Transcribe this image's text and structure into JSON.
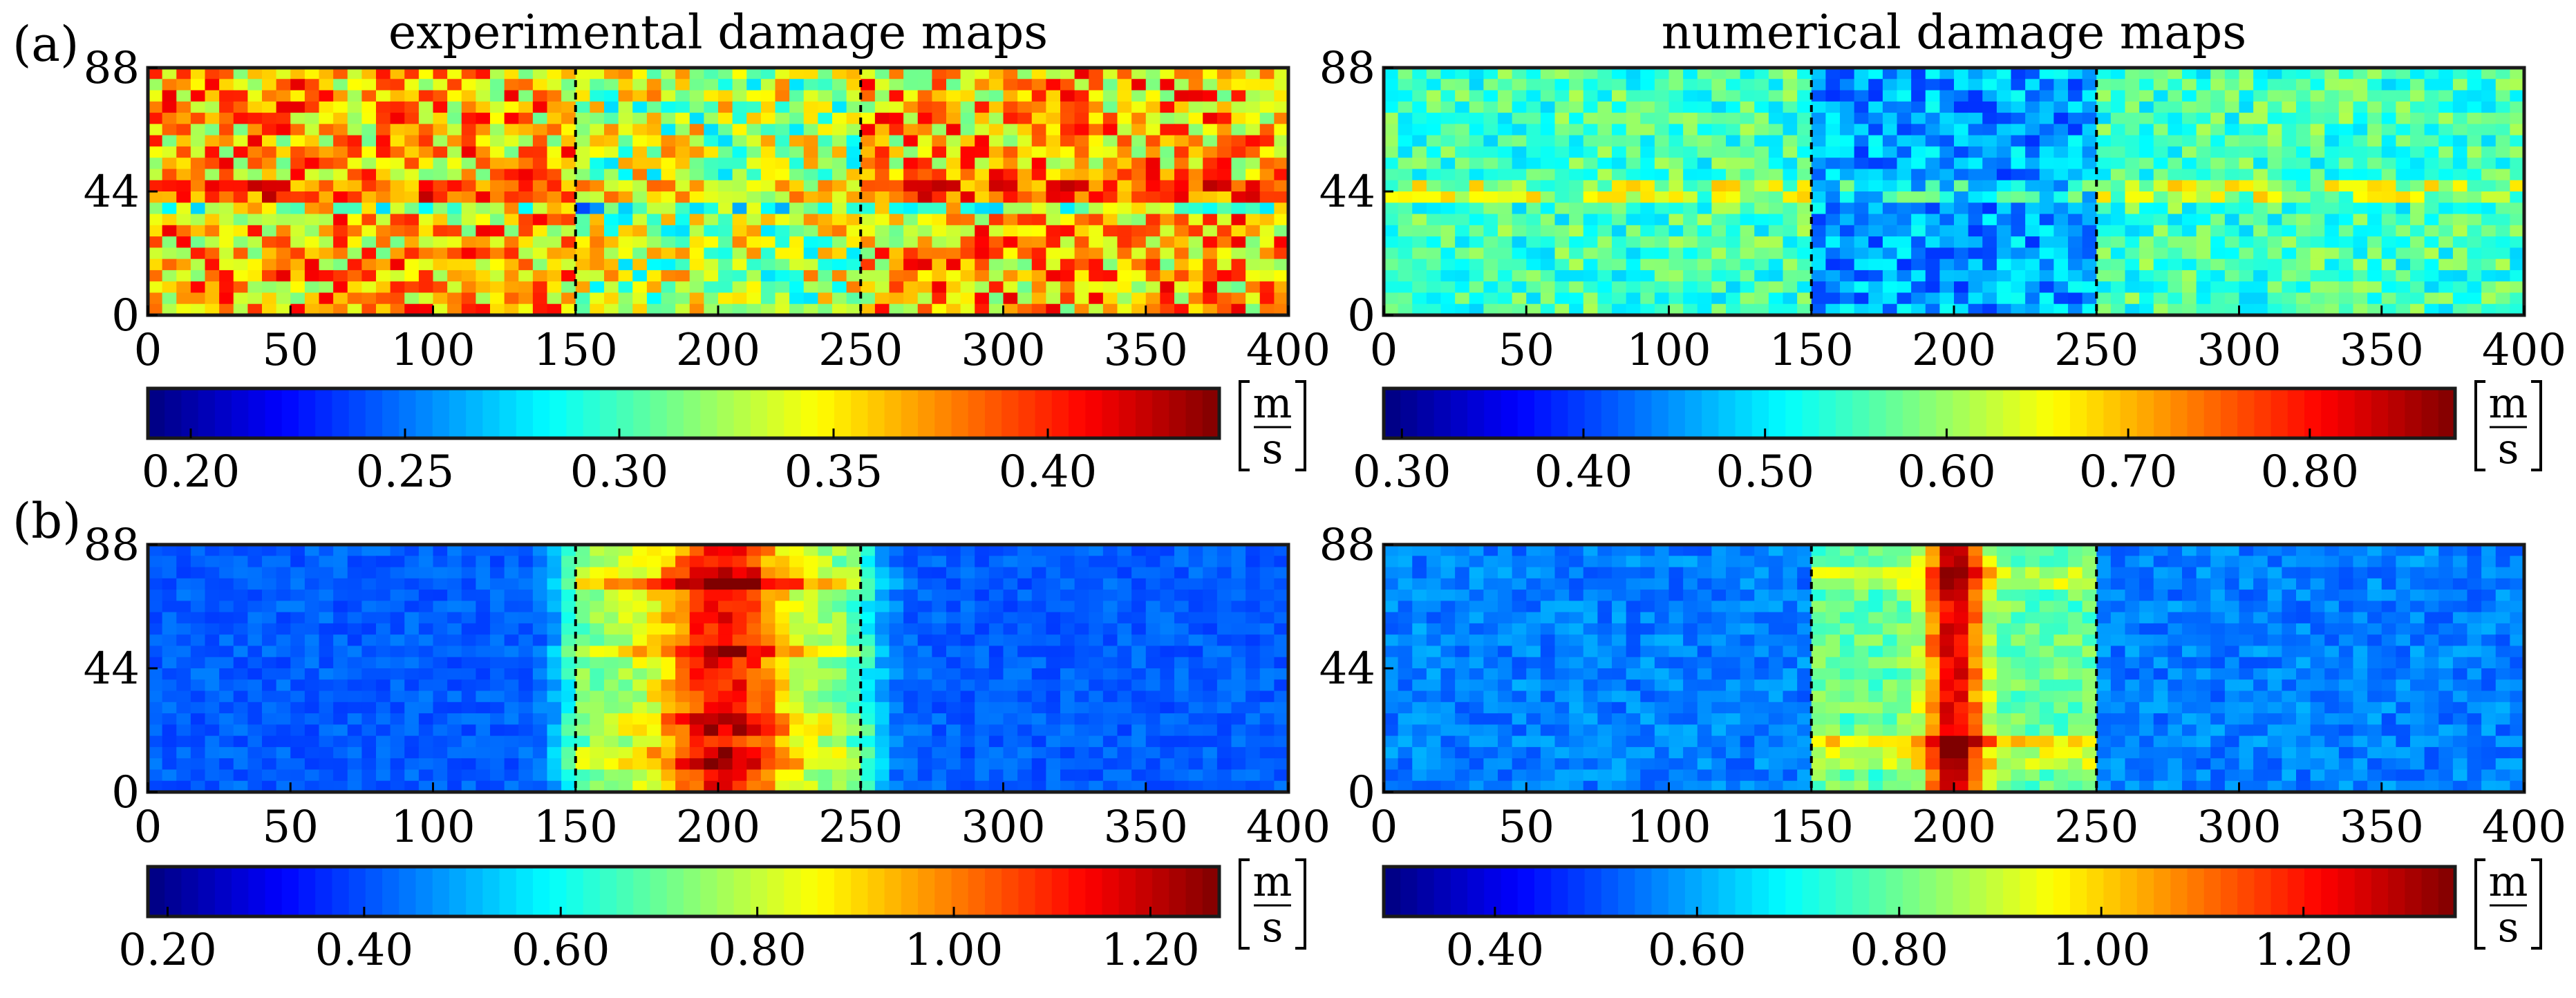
{
  "figure": {
    "row_labels": {
      "a": "(a)",
      "b": "(b)"
    },
    "unit": {
      "numerator": "m",
      "denominator": "s"
    },
    "colors": {
      "frame": "#1a1a1a",
      "divider": "#000000",
      "jet": [
        "#00007f",
        "#0000ff",
        "#007fff",
        "#00ffff",
        "#7fff7f",
        "#ffff00",
        "#ff7f00",
        "#ff0000",
        "#7f0000"
      ]
    }
  },
  "chart_data": [
    {
      "id": "a-exp",
      "row": "a",
      "type": "heatmap",
      "title": "experimental damage maps",
      "x_ticks": [
        "0",
        "50",
        "100",
        "150",
        "200",
        "250",
        "300",
        "350",
        "400"
      ],
      "y_ticks": [
        "0",
        "44",
        "88"
      ],
      "xlim": [
        0,
        400
      ],
      "ylim": [
        0,
        88
      ],
      "damage_zone": [
        150,
        250
      ],
      "pattern": "noise_band",
      "colorbar": {
        "ticks": [
          "0.20",
          "0.25",
          "0.30",
          "0.35",
          "0.40"
        ],
        "tick_values": [
          0.2,
          0.25,
          0.3,
          0.35,
          0.4
        ],
        "range": [
          0.19,
          0.44
        ],
        "unit_numerator": "m",
        "unit_denominator": "s"
      }
    },
    {
      "id": "a-num",
      "row": "a",
      "type": "heatmap",
      "title": "numerical damage maps",
      "x_ticks": [
        "0",
        "50",
        "100",
        "150",
        "200",
        "250",
        "300",
        "350",
        "400"
      ],
      "y_ticks": [
        "0",
        "44",
        "88"
      ],
      "xlim": [
        0,
        400
      ],
      "ylim": [
        0,
        88
      ],
      "damage_zone": [
        150,
        250
      ],
      "pattern": "noise_band_dark_center",
      "colorbar": {
        "ticks": [
          "0.30",
          "0.40",
          "0.50",
          "0.60",
          "0.70",
          "0.80"
        ],
        "tick_values": [
          0.3,
          0.4,
          0.5,
          0.6,
          0.7,
          0.8
        ],
        "range": [
          0.29,
          0.88
        ],
        "unit_numerator": "m",
        "unit_denominator": "s"
      }
    },
    {
      "id": "b-exp",
      "row": "b",
      "type": "heatmap",
      "title": "",
      "x_ticks": [
        "0",
        "50",
        "100",
        "150",
        "200",
        "250",
        "300",
        "350",
        "400"
      ],
      "y_ticks": [
        "0",
        "44",
        "88"
      ],
      "xlim": [
        0,
        400
      ],
      "ylim": [
        0,
        88
      ],
      "damage_zone": [
        150,
        250
      ],
      "pattern": "damage_block",
      "colorbar": {
        "ticks": [
          "0.20",
          "0.40",
          "0.60",
          "0.80",
          "1.00",
          "1.20"
        ],
        "tick_values": [
          0.2,
          0.4,
          0.6,
          0.8,
          1.0,
          1.2
        ],
        "range": [
          0.18,
          1.27
        ],
        "unit_numerator": "m",
        "unit_denominator": "s"
      }
    },
    {
      "id": "b-num",
      "row": "b",
      "type": "heatmap",
      "title": "",
      "x_ticks": [
        "0",
        "50",
        "100",
        "150",
        "200",
        "250",
        "300",
        "350",
        "400"
      ],
      "y_ticks": [
        "0",
        "44",
        "88"
      ],
      "xlim": [
        0,
        400
      ],
      "ylim": [
        0,
        88
      ],
      "damage_zone": [
        150,
        250
      ],
      "pattern": "damage_block_bands",
      "colorbar": {
        "ticks": [
          "0.40",
          "0.60",
          "0.80",
          "1.00",
          "1.20"
        ],
        "tick_values": [
          0.4,
          0.6,
          0.8,
          1.0,
          1.2
        ],
        "range": [
          0.29,
          1.35
        ],
        "unit_numerator": "m",
        "unit_denominator": "s"
      }
    }
  ]
}
